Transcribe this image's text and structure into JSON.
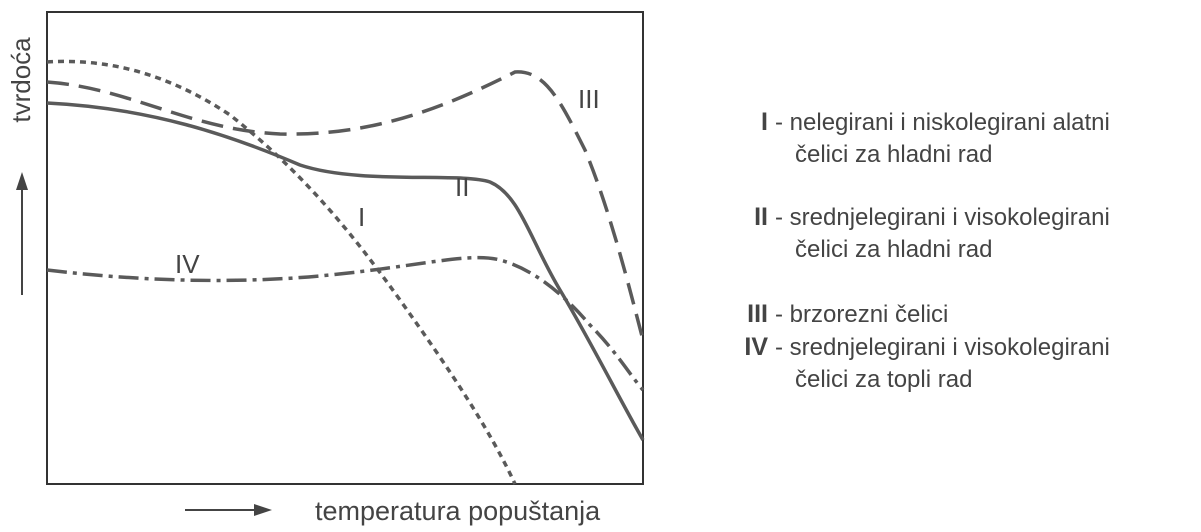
{
  "axes": {
    "y_label": "tvrdoća",
    "x_label": "temperatura popuštanja"
  },
  "curve_labels": [
    "I",
    "II",
    "III",
    "IV"
  ],
  "legend": [
    {
      "key": "I",
      "text": [
        "- nelegirani i niskolegirani alatni",
        "čelici za hladni rad"
      ]
    },
    {
      "key": "II",
      "text": [
        "- srednjelegirani i visokolegirani",
        "čelici za hladni rad"
      ]
    },
    {
      "key": "III",
      "text": [
        "- brzorezni čelici"
      ]
    },
    {
      "key": "IV",
      "text": [
        "- srednjelegirani i visokolegirani",
        "čelici za topli rad"
      ]
    }
  ]
}
